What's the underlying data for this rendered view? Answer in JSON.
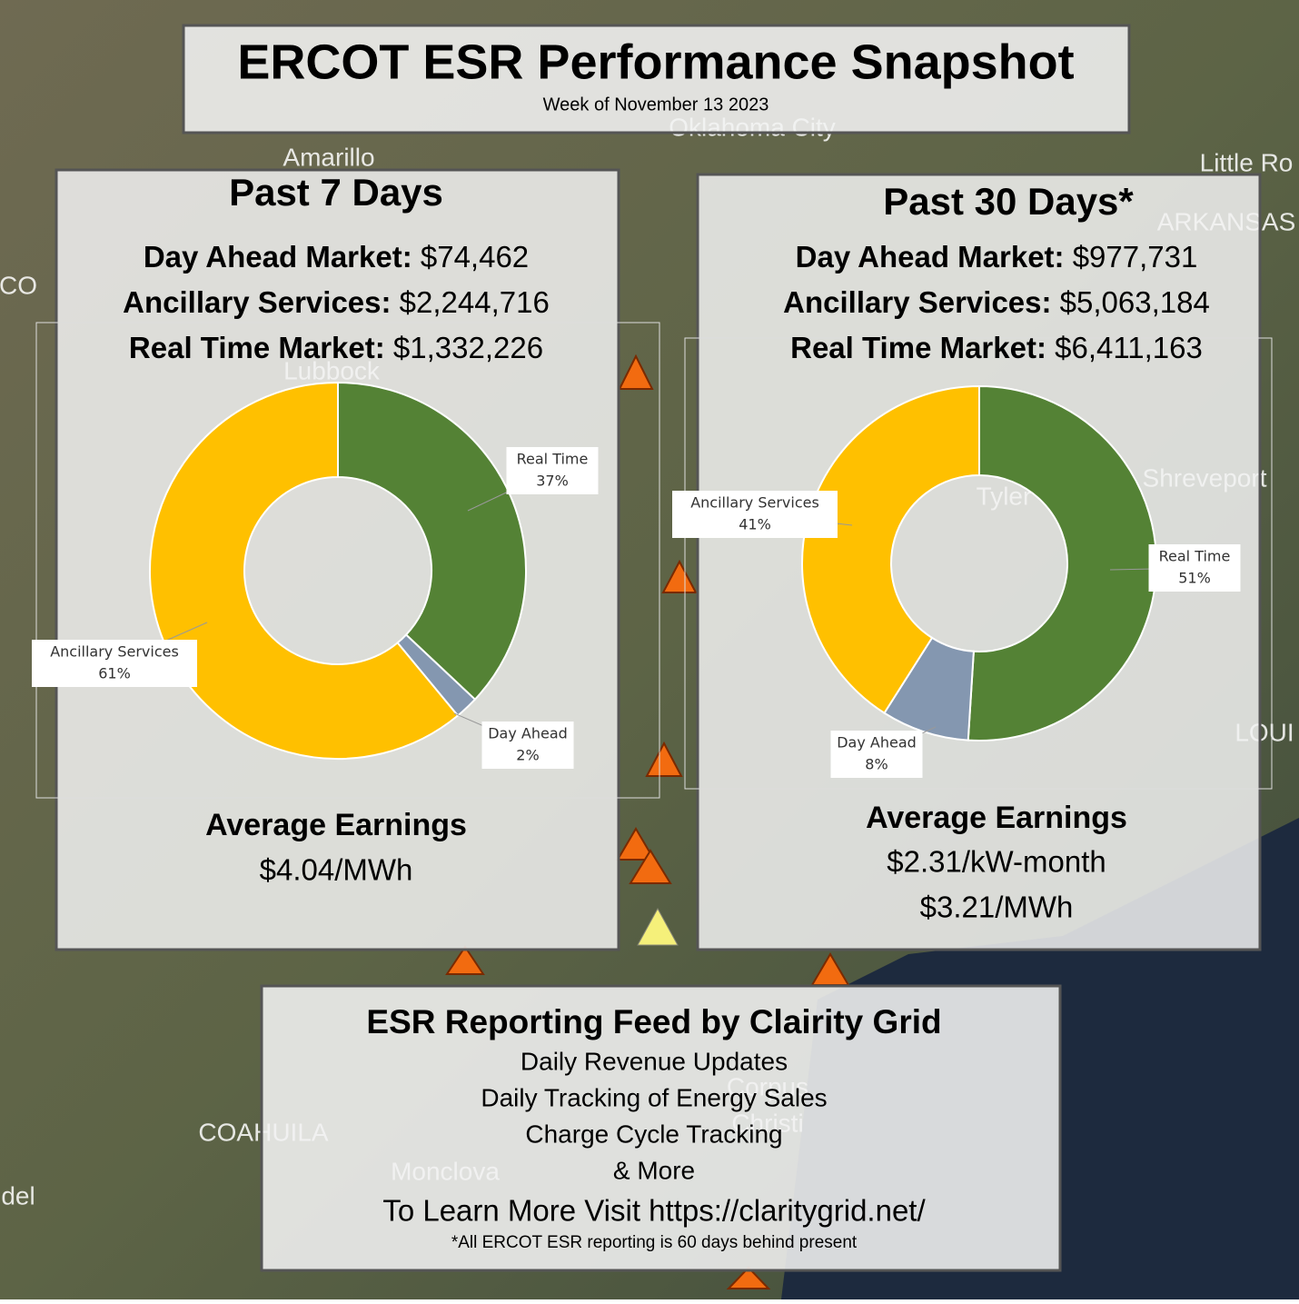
{
  "header": {
    "title": "ERCOT ESR Performance Snapshot",
    "subtitle": "Week of November 13 2023"
  },
  "map": {
    "labels": [
      "Amarillo",
      "Oklahoma City",
      "Little Ro",
      "ARKANSAS",
      "CO",
      "Lubbock",
      "Shreveport",
      "Tyler",
      "LOUI",
      "COAHUILA",
      "Monclova",
      "del",
      "Corpus",
      "Christi"
    ]
  },
  "panels": [
    {
      "title": "Past 7 Days",
      "metrics": [
        {
          "label": "Day Ahead Market:",
          "value": "$74,462"
        },
        {
          "label": "Ancillary Services:",
          "value": "$2,244,716"
        },
        {
          "label": "Real Time Market:",
          "value": "$1,332,226"
        }
      ],
      "earnings_title": "Average Earnings",
      "earnings": [
        "$4.04/MWh"
      ]
    },
    {
      "title": "Past 30 Days*",
      "metrics": [
        {
          "label": "Day Ahead Market:",
          "value": "$977,731"
        },
        {
          "label": "Ancillary Services:",
          "value": "$5,063,184"
        },
        {
          "label": "Real Time Market:",
          "value": "$6,411,163"
        }
      ],
      "earnings_title": "Average Earnings",
      "earnings": [
        "$2.31/kW-month",
        "$3.21/MWh"
      ]
    }
  ],
  "chart_data": [
    {
      "type": "donut",
      "categories": [
        "Real Time",
        "Day Ahead",
        "Ancillary Services"
      ],
      "values": [
        37,
        2,
        61
      ],
      "value_labels": [
        "37%",
        "2%",
        "61%"
      ],
      "colors": [
        "#548235",
        "#8497b0",
        "#ffc000"
      ]
    },
    {
      "type": "donut",
      "categories": [
        "Real Time",
        "Day Ahead",
        "Ancillary Services"
      ],
      "values": [
        51,
        8,
        41
      ],
      "value_labels": [
        "51%",
        "8%",
        "41%"
      ],
      "colors": [
        "#548235",
        "#8497b0",
        "#ffc000"
      ]
    }
  ],
  "footer": {
    "title": "ESR Reporting Feed by Clairity Grid",
    "lines": [
      "Daily Revenue Updates",
      "Daily Tracking of Energy Sales",
      "Charge Cycle Tracking",
      "& More"
    ],
    "visit": "To Learn More Visit  https://claritygrid.net/",
    "note": "*All ERCOT ESR reporting is 60 days behind present"
  }
}
